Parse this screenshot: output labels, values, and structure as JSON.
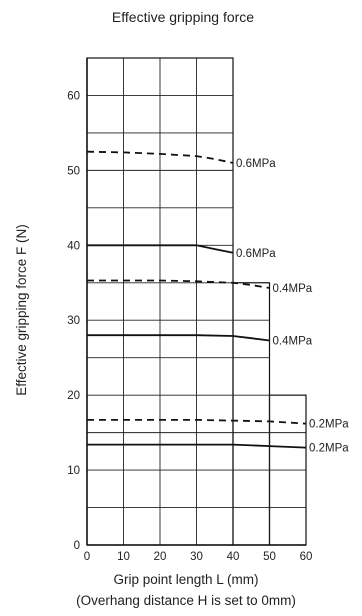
{
  "chart_data": {
    "type": "line",
    "title": "Effective gripping force",
    "xlabel": "Grip point length L (mm)",
    "xlabel_note": "(Overhang distance H is set to 0mm)",
    "ylabel": "Effective gripping force  F (N)",
    "xlim": [
      0,
      60
    ],
    "ylim": [
      0,
      65
    ],
    "x_ticks": [
      0,
      10,
      20,
      30,
      40,
      50,
      60
    ],
    "y_ticks": [
      0,
      10,
      20,
      30,
      40,
      50,
      60
    ],
    "grid": true,
    "grid_regions": [
      {
        "x_max": 40,
        "y_max": 65
      },
      {
        "x_max": 50,
        "y_max": 35
      },
      {
        "x_max": 60,
        "y_max": 20
      }
    ],
    "series": [
      {
        "label": "0.6MPa",
        "style": "dashed",
        "x": [
          0,
          10,
          20,
          30,
          35,
          40
        ],
        "y": [
          52.5,
          52.4,
          52.2,
          51.9,
          51.5,
          51
        ]
      },
      {
        "label": "0.6MPa",
        "style": "solid",
        "x": [
          0,
          10,
          20,
          30,
          35,
          40
        ],
        "y": [
          40,
          40,
          40,
          40,
          39.5,
          39.0
        ]
      },
      {
        "label": "0.4MPa",
        "style": "dashed",
        "x": [
          0,
          10,
          20,
          30,
          40,
          45,
          50
        ],
        "y": [
          35.3,
          35.3,
          35.3,
          35.2,
          35.0,
          34.7,
          34.3
        ]
      },
      {
        "label": "0.4MPa",
        "style": "solid",
        "x": [
          0,
          10,
          20,
          30,
          40,
          45,
          50
        ],
        "y": [
          28,
          28,
          28,
          28,
          27.9,
          27.6,
          27.3
        ]
      },
      {
        "label": "0.2MPa",
        "style": "dashed",
        "x": [
          0,
          10,
          20,
          30,
          40,
          50,
          60
        ],
        "y": [
          16.7,
          16.7,
          16.7,
          16.7,
          16.6,
          16.5,
          16.2
        ]
      },
      {
        "label": "0.2MPa",
        "style": "solid",
        "x": [
          0,
          10,
          20,
          30,
          40,
          50,
          60
        ],
        "y": [
          13.4,
          13.4,
          13.4,
          13.4,
          13.4,
          13.2,
          13.0
        ]
      }
    ]
  }
}
